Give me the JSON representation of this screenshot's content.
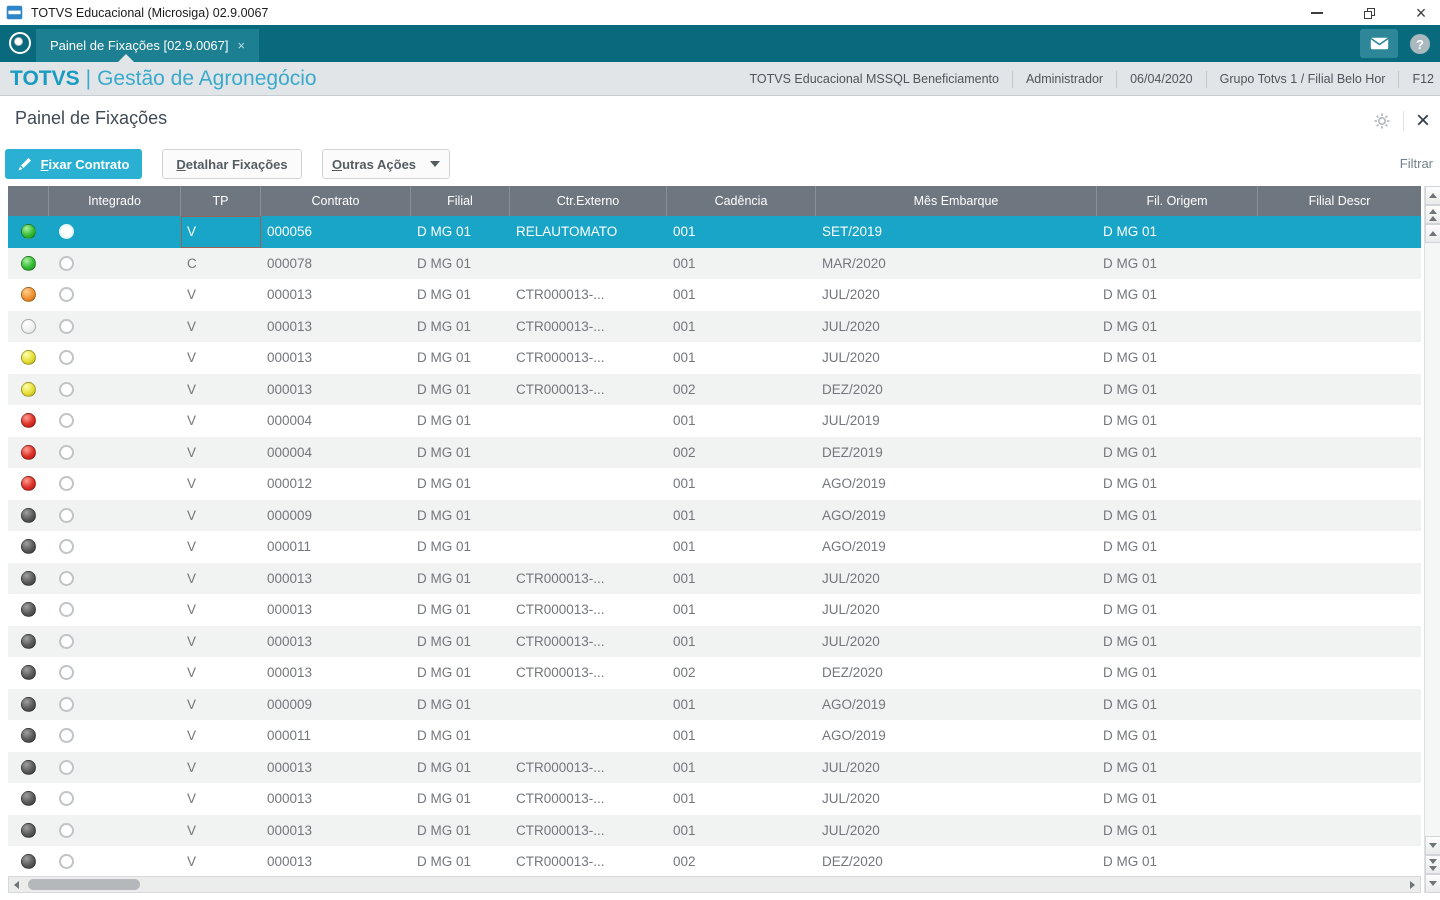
{
  "window": {
    "title": "TOTVS Educacional (Microsiga) 02.9.0067"
  },
  "tab_bar": {
    "active_tab_label": "Painel de Fixações [02.9.0067]",
    "tab_close_glyph": "×",
    "icons": [
      "menu-circle-icon",
      "mail-icon",
      "help-icon"
    ],
    "help_glyph": "?"
  },
  "app_header": {
    "brand": "TOTVS",
    "separator": "|",
    "product": "Gestão de Agronegócio",
    "environment": "TOTVS Educacional MSSQL Beneficiamento",
    "user": "Administrador",
    "date": "06/04/2020",
    "branch": "Grupo Totvs 1 / Filial Belo Hor",
    "config_shortcut": "F12"
  },
  "page": {
    "title": "Painel de Fixações",
    "close_glyph": "×",
    "filter_label": "Filtrar"
  },
  "toolbar": {
    "primary_label": "Fixar Contrato",
    "secondary_label": "Detalhar Fixações",
    "more_label": "Outras Ações"
  },
  "colors": {
    "tabbar_teal": "#086a7c",
    "active_tab_teal": "#1d7f92",
    "brand_blue": "#1a9cc2",
    "primary_button_cyan": "#29b0d2",
    "selected_row_cyan": "#18a5c8",
    "grid_header_gray": "#6e7780",
    "status_green": "#35bd35",
    "status_orange": "#ef9132",
    "status_yellow": "#e6de38",
    "status_red": "#dd3028",
    "status_gray": "#5a5a5a",
    "status_white": "#f0f0f0"
  },
  "table": {
    "headers": [
      "",
      "Integrado",
      "TP",
      "Contrato",
      "Filial",
      "Ctr.Externo",
      "Cadência",
      "Mês Embarque",
      "Fil. Origem",
      "Filial Descr"
    ],
    "rows": [
      {
        "status": "green",
        "selected": true,
        "tp": "V",
        "contrato": "000056",
        "filial": "D MG 01",
        "ctr_externo": "RELAUTOMATO",
        "cadencia": "001",
        "mes_embarque": "SET/2019",
        "fil_origem": "D MG 01",
        "filial_descr": ""
      },
      {
        "status": "green",
        "selected": false,
        "tp": "C",
        "contrato": "000078",
        "filial": "D MG 01",
        "ctr_externo": "",
        "cadencia": "001",
        "mes_embarque": "MAR/2020",
        "fil_origem": "D MG 01",
        "filial_descr": ""
      },
      {
        "status": "orange",
        "selected": false,
        "tp": "V",
        "contrato": "000013",
        "filial": "D MG 01",
        "ctr_externo": "CTR000013-...",
        "cadencia": "001",
        "mes_embarque": "JUL/2020",
        "fil_origem": "D MG 01",
        "filial_descr": ""
      },
      {
        "status": "white",
        "selected": false,
        "tp": "V",
        "contrato": "000013",
        "filial": "D MG 01",
        "ctr_externo": "CTR000013-...",
        "cadencia": "001",
        "mes_embarque": "JUL/2020",
        "fil_origem": "D MG 01",
        "filial_descr": ""
      },
      {
        "status": "yellow",
        "selected": false,
        "tp": "V",
        "contrato": "000013",
        "filial": "D MG 01",
        "ctr_externo": "CTR000013-...",
        "cadencia": "001",
        "mes_embarque": "JUL/2020",
        "fil_origem": "D MG 01",
        "filial_descr": ""
      },
      {
        "status": "yellow",
        "selected": false,
        "tp": "V",
        "contrato": "000013",
        "filial": "D MG 01",
        "ctr_externo": "CTR000013-...",
        "cadencia": "002",
        "mes_embarque": "DEZ/2020",
        "fil_origem": "D MG 01",
        "filial_descr": ""
      },
      {
        "status": "red",
        "selected": false,
        "tp": "V",
        "contrato": "000004",
        "filial": "D MG 01",
        "ctr_externo": "",
        "cadencia": "001",
        "mes_embarque": "JUL/2019",
        "fil_origem": "D MG 01",
        "filial_descr": ""
      },
      {
        "status": "red",
        "selected": false,
        "tp": "V",
        "contrato": "000004",
        "filial": "D MG 01",
        "ctr_externo": "",
        "cadencia": "002",
        "mes_embarque": "DEZ/2019",
        "fil_origem": "D MG 01",
        "filial_descr": ""
      },
      {
        "status": "red",
        "selected": false,
        "tp": "V",
        "contrato": "000012",
        "filial": "D MG 01",
        "ctr_externo": "",
        "cadencia": "001",
        "mes_embarque": "AGO/2019",
        "fil_origem": "D MG 01",
        "filial_descr": ""
      },
      {
        "status": "gray",
        "selected": false,
        "tp": "V",
        "contrato": "000009",
        "filial": "D MG 01",
        "ctr_externo": "",
        "cadencia": "001",
        "mes_embarque": "AGO/2019",
        "fil_origem": "D MG 01",
        "filial_descr": ""
      },
      {
        "status": "gray",
        "selected": false,
        "tp": "V",
        "contrato": "000011",
        "filial": "D MG 01",
        "ctr_externo": "",
        "cadencia": "001",
        "mes_embarque": "AGO/2019",
        "fil_origem": "D MG 01",
        "filial_descr": ""
      },
      {
        "status": "gray",
        "selected": false,
        "tp": "V",
        "contrato": "000013",
        "filial": "D MG 01",
        "ctr_externo": "CTR000013-...",
        "cadencia": "001",
        "mes_embarque": "JUL/2020",
        "fil_origem": "D MG 01",
        "filial_descr": ""
      },
      {
        "status": "gray",
        "selected": false,
        "tp": "V",
        "contrato": "000013",
        "filial": "D MG 01",
        "ctr_externo": "CTR000013-...",
        "cadencia": "001",
        "mes_embarque": "JUL/2020",
        "fil_origem": "D MG 01",
        "filial_descr": ""
      },
      {
        "status": "gray",
        "selected": false,
        "tp": "V",
        "contrato": "000013",
        "filial": "D MG 01",
        "ctr_externo": "CTR000013-...",
        "cadencia": "001",
        "mes_embarque": "JUL/2020",
        "fil_origem": "D MG 01",
        "filial_descr": ""
      },
      {
        "status": "gray",
        "selected": false,
        "tp": "V",
        "contrato": "000013",
        "filial": "D MG 01",
        "ctr_externo": "CTR000013-...",
        "cadencia": "002",
        "mes_embarque": "DEZ/2020",
        "fil_origem": "D MG 01",
        "filial_descr": ""
      },
      {
        "status": "gray",
        "selected": false,
        "tp": "V",
        "contrato": "000009",
        "filial": "D MG 01",
        "ctr_externo": "",
        "cadencia": "001",
        "mes_embarque": "AGO/2019",
        "fil_origem": "D MG 01",
        "filial_descr": ""
      },
      {
        "status": "gray",
        "selected": false,
        "tp": "V",
        "contrato": "000011",
        "filial": "D MG 01",
        "ctr_externo": "",
        "cadencia": "001",
        "mes_embarque": "AGO/2019",
        "fil_origem": "D MG 01",
        "filial_descr": ""
      },
      {
        "status": "gray",
        "selected": false,
        "tp": "V",
        "contrato": "000013",
        "filial": "D MG 01",
        "ctr_externo": "CTR000013-...",
        "cadencia": "001",
        "mes_embarque": "JUL/2020",
        "fil_origem": "D MG 01",
        "filial_descr": ""
      },
      {
        "status": "gray",
        "selected": false,
        "tp": "V",
        "contrato": "000013",
        "filial": "D MG 01",
        "ctr_externo": "CTR000013-...",
        "cadencia": "001",
        "mes_embarque": "JUL/2020",
        "fil_origem": "D MG 01",
        "filial_descr": ""
      },
      {
        "status": "gray",
        "selected": false,
        "tp": "V",
        "contrato": "000013",
        "filial": "D MG 01",
        "ctr_externo": "CTR000013-...",
        "cadencia": "001",
        "mes_embarque": "JUL/2020",
        "fil_origem": "D MG 01",
        "filial_descr": ""
      },
      {
        "status": "gray",
        "selected": false,
        "tp": "V",
        "contrato": "000013",
        "filial": "D MG 01",
        "ctr_externo": "CTR000013-...",
        "cadencia": "002",
        "mes_embarque": "DEZ/2020",
        "fil_origem": "D MG 01",
        "filial_descr": ""
      }
    ]
  }
}
